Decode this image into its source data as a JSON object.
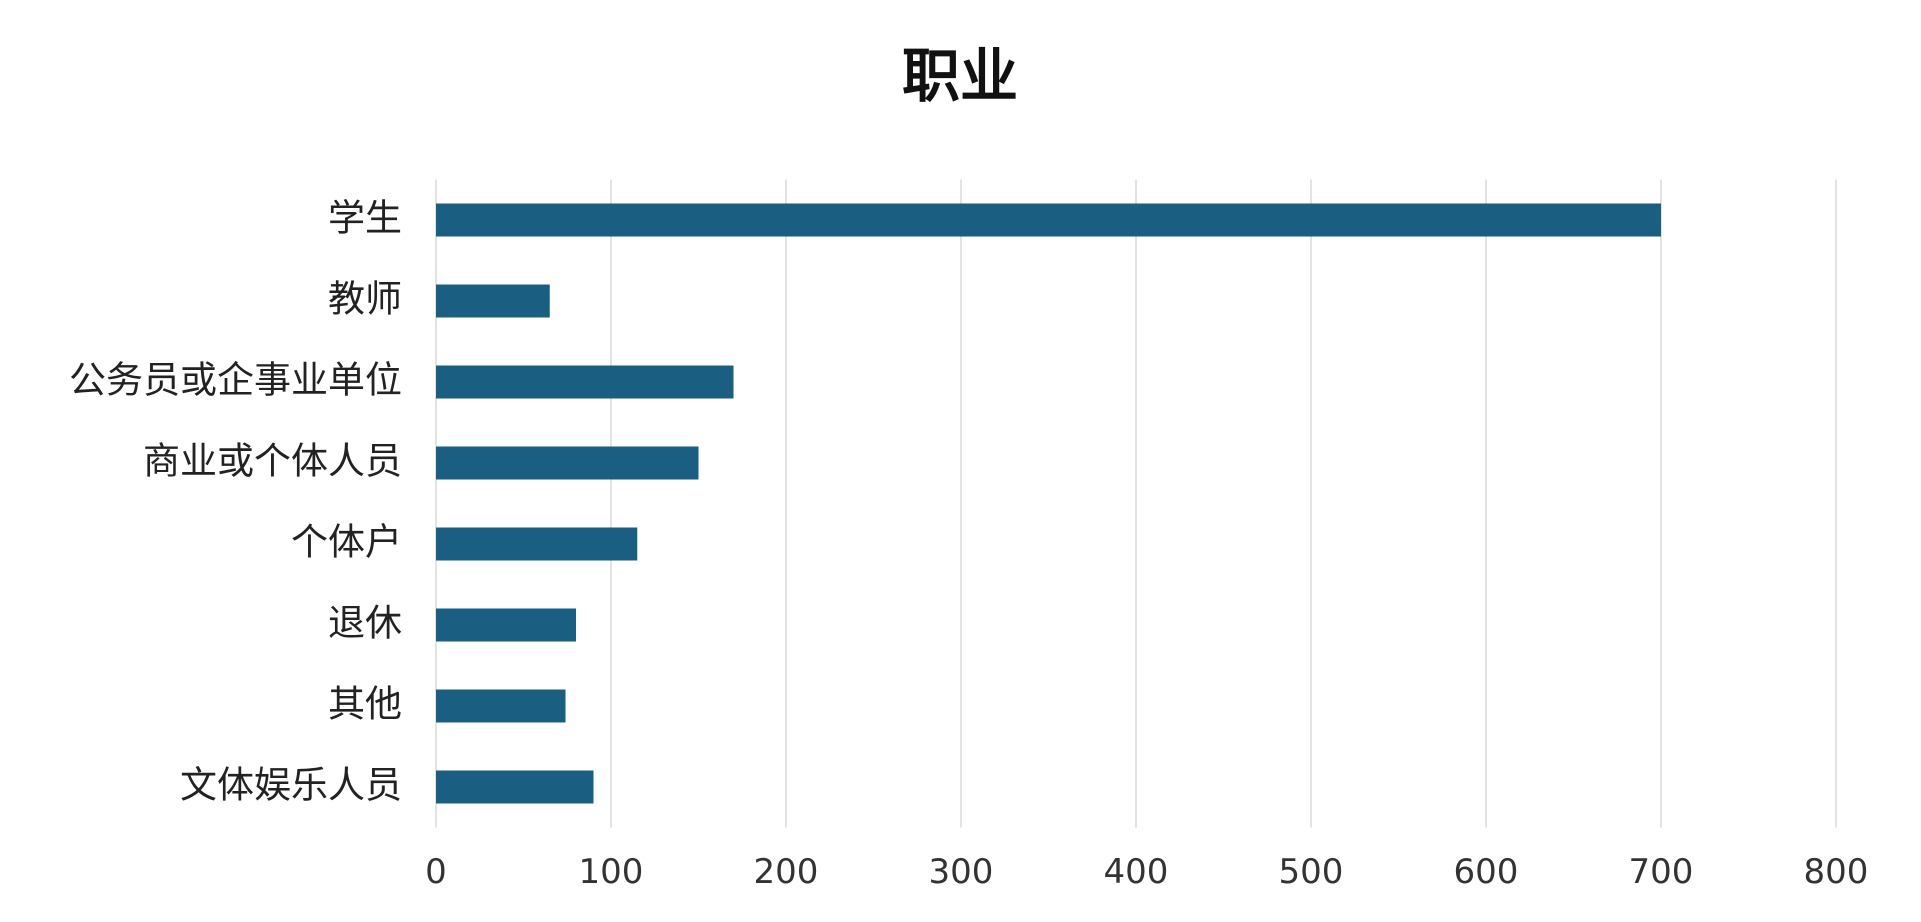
{
  "chart_data": {
    "type": "bar",
    "orientation": "horizontal",
    "title": "职业",
    "categories": [
      "学生",
      "教师",
      "公务员或企事业单位",
      "商业或个体人员",
      "个体户",
      "退休",
      "其他",
      "文体娱乐人员"
    ],
    "values": [
      700,
      65,
      170,
      150,
      115,
      80,
      74,
      90
    ],
    "color": "#1a5e82",
    "xlim": [
      0,
      800
    ],
    "xticks": [
      0,
      100,
      200,
      300,
      400,
      500,
      600,
      700,
      800
    ],
    "grid": true
  }
}
